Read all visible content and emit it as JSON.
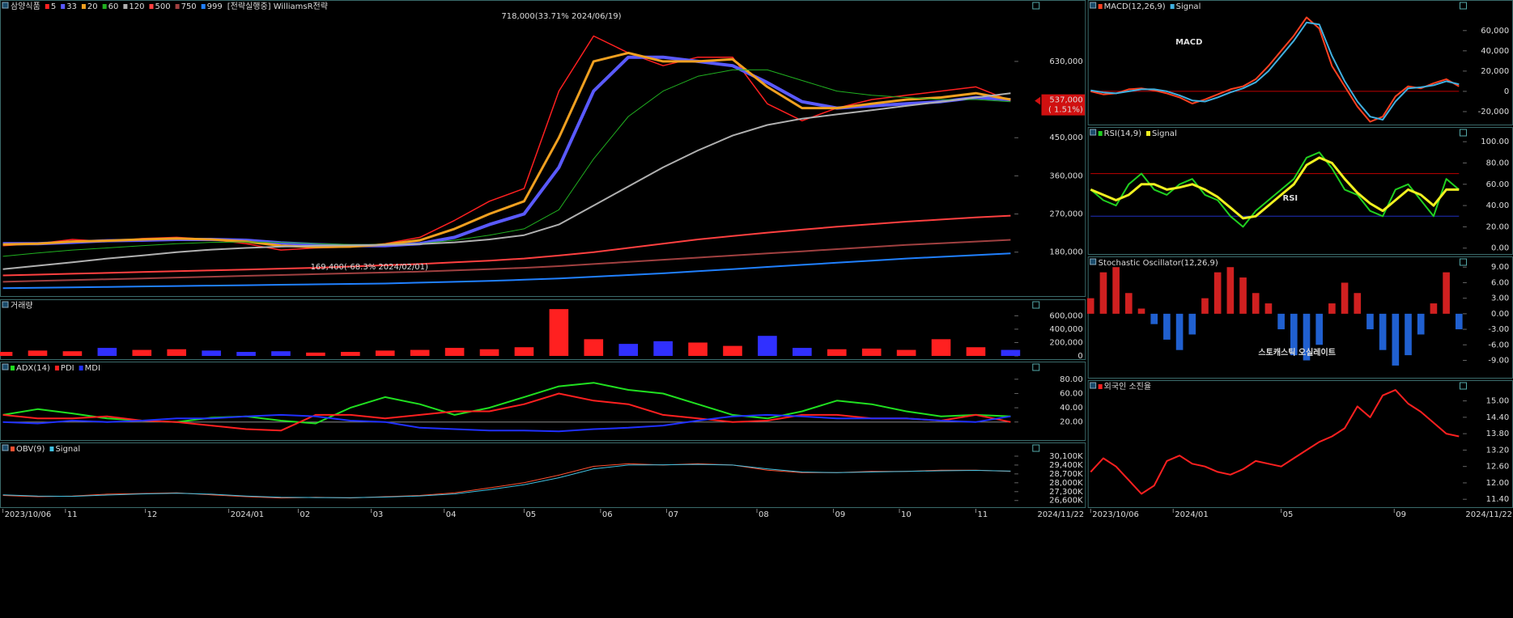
{
  "chart_data": [
    {
      "type": "line",
      "title": "삼양식품",
      "strategy_label": "[전략실행중] WilliamsR전략",
      "annotations": [
        "718,000(33.71% 2024/06/19)",
        "169,400(-68.3% 2024/02/01)"
      ],
      "last_price": {
        "value": 537000,
        "label": "537,000"
      },
      "change_label": "( 1.51%)",
      "ylim": [
        84000,
        752000
      ],
      "yticks": [
        {
          "value": 180000,
          "label": "180,000"
        },
        {
          "value": 270000,
          "label": "270,000"
        },
        {
          "value": 360000,
          "label": "360,000"
        },
        {
          "value": 450000,
          "label": "450,000"
        },
        {
          "value": 630000,
          "label": "630,000"
        }
      ],
      "series": [
        {
          "name": "5",
          "color": "#ff2020",
          "width": 1.5,
          "values": [
            195000,
            200000,
            210000,
            205000,
            212000,
            215000,
            210000,
            200000,
            185000,
            190000,
            192000,
            200000,
            215000,
            255000,
            300000,
            330000,
            560000,
            690000,
            650000,
            620000,
            640000,
            640000,
            530000,
            490000,
            520000,
            540000,
            550000,
            560000,
            570000,
            537000
          ]
        },
        {
          "name": "33",
          "color": "#5a5aff",
          "width": 4,
          "values": [
            200000,
            200000,
            203000,
            207000,
            208000,
            210000,
            210000,
            208000,
            202000,
            198000,
            195000,
            195000,
            200000,
            215000,
            245000,
            270000,
            380000,
            560000,
            640000,
            640000,
            630000,
            620000,
            580000,
            535000,
            520000,
            525000,
            530000,
            535000,
            545000,
            540000
          ]
        },
        {
          "name": "20",
          "color": "#f0a020",
          "width": 3,
          "values": [
            198000,
            200000,
            205000,
            207000,
            210000,
            212000,
            210000,
            205000,
            195000,
            192000,
            193000,
            198000,
            208000,
            235000,
            270000,
            300000,
            450000,
            630000,
            650000,
            630000,
            630000,
            635000,
            570000,
            520000,
            520000,
            530000,
            540000,
            545000,
            555000,
            540000
          ]
        },
        {
          "name": "60",
          "color": "#20b020",
          "width": 1,
          "values": [
            170000,
            178000,
            185000,
            190000,
            195000,
            200000,
            203000,
            204000,
            203000,
            200000,
            198000,
            198000,
            200000,
            208000,
            220000,
            235000,
            280000,
            400000,
            500000,
            560000,
            595000,
            610000,
            610000,
            585000,
            560000,
            550000,
            545000,
            540000,
            540000,
            535000
          ]
        },
        {
          "name": "120",
          "color": "#b0b0b0",
          "width": 2,
          "values": [
            140000,
            148000,
            156000,
            165000,
            172000,
            180000,
            186000,
            190000,
            193000,
            195000,
            196000,
            197000,
            199000,
            203000,
            210000,
            220000,
            245000,
            290000,
            335000,
            380000,
            420000,
            455000,
            480000,
            495000,
            505000,
            515000,
            525000,
            535000,
            545000,
            555000
          ]
        },
        {
          "name": "500",
          "color": "#ff4040",
          "width": 2,
          "values": [
            125000,
            127000,
            129000,
            131000,
            133000,
            135000,
            137000,
            139000,
            141000,
            143000,
            146000,
            149000,
            152000,
            156000,
            160000,
            165000,
            172000,
            180000,
            190000,
            200000,
            210000,
            218000,
            226000,
            233000,
            240000,
            246000,
            252000,
            257000,
            262000,
            266000
          ]
        },
        {
          "name": "750",
          "color": "#a04040",
          "width": 2,
          "values": [
            110000,
            112000,
            114000,
            116000,
            118000,
            120000,
            122000,
            124000,
            126000,
            128000,
            130000,
            132000,
            134000,
            137000,
            140000,
            143000,
            147000,
            152000,
            157000,
            162000,
            167000,
            172000,
            177000,
            182000,
            187000,
            192000,
            197000,
            201000,
            205000,
            209000
          ]
        },
        {
          "name": "999",
          "color": "#2080ff",
          "width": 2,
          "values": [
            95000,
            96000,
            97000,
            98000,
            99000,
            100000,
            101000,
            102000,
            103000,
            104000,
            105000,
            106000,
            108000,
            110000,
            112000,
            115000,
            118000,
            122000,
            126000,
            130000,
            135000,
            140000,
            145000,
            150000,
            155000,
            160000,
            165000,
            169000,
            173000,
            177000
          ]
        }
      ]
    },
    {
      "type": "bar",
      "title": "거래량",
      "up_color": "#ff2020",
      "down_color": "#3030ff",
      "ylim": [
        0,
        750000
      ],
      "yticks": [
        0,
        {
          "value": 200000,
          "label": "200,000"
        },
        {
          "value": 400000,
          "label": "400,000"
        },
        {
          "value": 600000,
          "label": "600,000"
        }
      ],
      "values": [
        60000,
        80000,
        70000,
        120000,
        90000,
        100000,
        80000,
        60000,
        70000,
        50000,
        60000,
        80000,
        90000,
        120000,
        100000,
        130000,
        700000,
        250000,
        180000,
        220000,
        200000,
        150000,
        300000,
        120000,
        100000,
        110000,
        90000,
        250000,
        130000,
        90000
      ]
    },
    {
      "type": "line",
      "ylim": [
        -3,
        90
      ],
      "yticks": [
        {
          "value": 20,
          "label": "20.00"
        },
        {
          "value": 40,
          "label": "40.00"
        },
        {
          "value": 60,
          "label": "60.00"
        },
        {
          "value": 80,
          "label": "80.00"
        }
      ],
      "series": [
        {
          "name": "ADX(14)",
          "color": "#20e020",
          "width": 2,
          "values": [
            30,
            38,
            32,
            25,
            22,
            20,
            26,
            28,
            22,
            18,
            40,
            55,
            45,
            30,
            40,
            55,
            70,
            75,
            65,
            60,
            45,
            30,
            25,
            35,
            50,
            45,
            35,
            28,
            30,
            28
          ]
        },
        {
          "name": "PDI",
          "color": "#ff2020",
          "width": 2,
          "values": [
            30,
            25,
            25,
            28,
            22,
            20,
            15,
            10,
            8,
            30,
            30,
            25,
            30,
            35,
            35,
            45,
            60,
            50,
            45,
            30,
            25,
            20,
            22,
            30,
            30,
            25,
            25,
            22,
            30,
            20
          ]
        },
        {
          "name": "MDI",
          "color": "#2030ff",
          "width": 2,
          "values": [
            20,
            18,
            22,
            20,
            22,
            25,
            25,
            28,
            30,
            28,
            22,
            20,
            12,
            10,
            8,
            8,
            7,
            10,
            12,
            15,
            22,
            28,
            30,
            28,
            25,
            25,
            25,
            22,
            20,
            28
          ]
        }
      ]
    },
    {
      "type": "line",
      "ylim": [
        26200,
        30800
      ],
      "yticks": [
        {
          "value": 26600,
          "label": "26,600K"
        },
        {
          "value": 27300,
          "label": "27,300K"
        },
        {
          "value": 28000,
          "label": "28,000K"
        },
        {
          "value": 28700,
          "label": "28,700K"
        },
        {
          "value": 29400,
          "label": "29,400K"
        },
        {
          "value": 30100,
          "label": "30,100K"
        }
      ],
      "series": [
        {
          "name": "OBV(9)",
          "color": "#ff5030",
          "width": 1,
          "values": [
            27000,
            26900,
            26950,
            27100,
            27150,
            27200,
            27050,
            26900,
            26800,
            26850,
            26800,
            26900,
            27000,
            27200,
            27600,
            28000,
            28600,
            29300,
            29500,
            29400,
            29500,
            29400,
            29000,
            28800,
            28800,
            28900,
            28900,
            29000,
            29000,
            28900
          ]
        },
        {
          "name": "Signal",
          "color": "#40c0e0",
          "width": 1,
          "values": [
            27050,
            26950,
            26930,
            27030,
            27120,
            27180,
            27100,
            26950,
            26850,
            26830,
            26820,
            26870,
            26960,
            27120,
            27450,
            27850,
            28400,
            29100,
            29400,
            29420,
            29450,
            29400,
            29100,
            28850,
            28800,
            28850,
            28900,
            28950,
            28980,
            28920
          ]
        }
      ]
    },
    {
      "type": "line",
      "overlay_label": "MACD",
      "ylim": [
        -32000,
        79000
      ],
      "baseline_color": "#c00000",
      "yticks": [
        {
          "value": -20000,
          "label": "-20,000"
        },
        0,
        {
          "value": 20000,
          "label": "20,000"
        },
        {
          "value": 40000,
          "label": "40,000"
        },
        {
          "value": 60000,
          "label": "60,000"
        }
      ],
      "series": [
        {
          "name": "MACD(12,26,9)",
          "color": "#ff4020",
          "width": 2,
          "values": [
            0,
            -3000,
            -2000,
            2000,
            3000,
            1000,
            -2000,
            -6000,
            -12000,
            -8000,
            -3000,
            2000,
            5000,
            12000,
            25000,
            40000,
            55000,
            73000,
            62000,
            25000,
            5000,
            -15000,
            -30000,
            -25000,
            -5000,
            5000,
            3000,
            8000,
            12000,
            5000
          ]
        },
        {
          "name": "Signal",
          "color": "#40b0e0",
          "width": 2,
          "values": [
            1000,
            -1000,
            -2000,
            0,
            2000,
            2000,
            0,
            -4000,
            -9000,
            -10000,
            -6000,
            -1000,
            3000,
            9000,
            20000,
            35000,
            50000,
            68000,
            66000,
            35000,
            10000,
            -10000,
            -25000,
            -28000,
            -10000,
            3000,
            4000,
            6000,
            10000,
            7000
          ]
        }
      ]
    },
    {
      "type": "line",
      "overlay_label": "RSI",
      "ylim": [
        -4,
        110
      ],
      "levels": [
        {
          "value": 70,
          "color": "#c00000"
        },
        {
          "value": 30,
          "color": "#2030c0"
        }
      ],
      "yticks": [
        {
          "value": 0,
          "label": "0.00"
        },
        {
          "value": 20,
          "label": "20.00"
        },
        {
          "value": 40,
          "label": "40.00"
        },
        {
          "value": 60,
          "label": "60.00"
        },
        {
          "value": 80,
          "label": "80.00"
        },
        {
          "value": 100,
          "label": "100.00"
        }
      ],
      "series": [
        {
          "name": "RSI(14,9)",
          "color": "#20d020",
          "width": 2,
          "values": [
            55,
            45,
            40,
            60,
            70,
            55,
            50,
            60,
            65,
            50,
            45,
            30,
            20,
            35,
            45,
            55,
            65,
            85,
            90,
            75,
            55,
            50,
            35,
            30,
            55,
            60,
            45,
            30,
            65,
            55
          ]
        },
        {
          "name": "Signal",
          "color": "#f0f020",
          "width": 3,
          "values": [
            55,
            50,
            45,
            50,
            60,
            60,
            55,
            57,
            60,
            55,
            48,
            38,
            28,
            30,
            40,
            50,
            60,
            78,
            85,
            80,
            65,
            52,
            42,
            35,
            45,
            55,
            50,
            40,
            55,
            55
          ]
        }
      ]
    },
    {
      "type": "bar",
      "title": "Stochastic Oscillator(12,26,9)",
      "overlay_label": "스토캐스틱 오실레이트",
      "up_color": "#d02020",
      "down_color": "#2060d0",
      "ylim": [
        -12.2,
        10.6
      ],
      "yticks": [
        {
          "value": -9,
          "label": "-9.00"
        },
        {
          "value": -6,
          "label": "-6.00"
        },
        {
          "value": -3,
          "label": "-3.00"
        },
        {
          "value": 0,
          "label": "0.00"
        },
        {
          "value": 3,
          "label": "3.00"
        },
        {
          "value": 6,
          "label": "6.00"
        },
        {
          "value": 9,
          "label": "9.00"
        }
      ],
      "values": [
        3,
        8,
        9,
        4,
        1,
        -2,
        -5,
        -7,
        -4,
        3,
        8,
        9,
        7,
        4,
        2,
        -3,
        -8,
        -9,
        -6,
        2,
        6,
        4,
        -3,
        -7,
        -10,
        -8,
        -4,
        2,
        8,
        -3
      ]
    },
    {
      "type": "line",
      "ylim": [
        11.14,
        15.58
      ],
      "yticks": [
        {
          "value": 11.4,
          "label": "11.40"
        },
        {
          "value": 12,
          "label": "12.00"
        },
        {
          "value": 12.6,
          "label": "12.60"
        },
        {
          "value": 13.2,
          "label": "13.20"
        },
        {
          "value": 13.8,
          "label": "13.80"
        },
        {
          "value": 14.4,
          "label": "14.40"
        },
        {
          "value": 15,
          "label": "15.00"
        }
      ],
      "series": [
        {
          "name": "외국인 소진율",
          "color": "#ff2020",
          "width": 2,
          "values": [
            12.4,
            12.9,
            12.6,
            12.1,
            11.6,
            11.9,
            12.8,
            13.0,
            12.7,
            12.6,
            12.4,
            12.3,
            12.5,
            12.8,
            12.7,
            12.6,
            12.9,
            13.2,
            13.5,
            13.7,
            14.0,
            14.8,
            14.4,
            15.2,
            15.4,
            14.9,
            14.6,
            14.2,
            13.8,
            13.7
          ]
        }
      ]
    }
  ],
  "x_axes": [
    {
      "xlim": [
        0,
        29
      ],
      "end_label": "2024/11/22",
      "xticks": [
        {
          "value": 0,
          "label": "2023/10/06"
        },
        {
          "value": 1.8,
          "label": "11"
        },
        {
          "value": 4.1,
          "label": "12"
        },
        {
          "value": 6.5,
          "label": "2024/01"
        },
        {
          "value": 8.5,
          "label": "02"
        },
        {
          "value": 10.6,
          "label": "03"
        },
        {
          "value": 12.7,
          "label": "04"
        },
        {
          "value": 15,
          "label": "05"
        },
        {
          "value": 17.2,
          "label": "06"
        },
        {
          "value": 19.1,
          "label": "07"
        },
        {
          "value": 21.7,
          "label": "08"
        },
        {
          "value": 23.9,
          "label": "09"
        },
        {
          "value": 25.8,
          "label": "10"
        },
        {
          "value": 28,
          "label": "11"
        }
      ]
    },
    {
      "xlim": [
        0,
        29
      ],
      "end_label": "2024/11/22",
      "xticks": [
        {
          "value": 0,
          "label": "2023/10/06"
        },
        {
          "value": 6.5,
          "label": "2024/01"
        },
        {
          "value": 15,
          "label": "05"
        },
        {
          "value": 23.9,
          "label": "09"
        }
      ]
    }
  ]
}
